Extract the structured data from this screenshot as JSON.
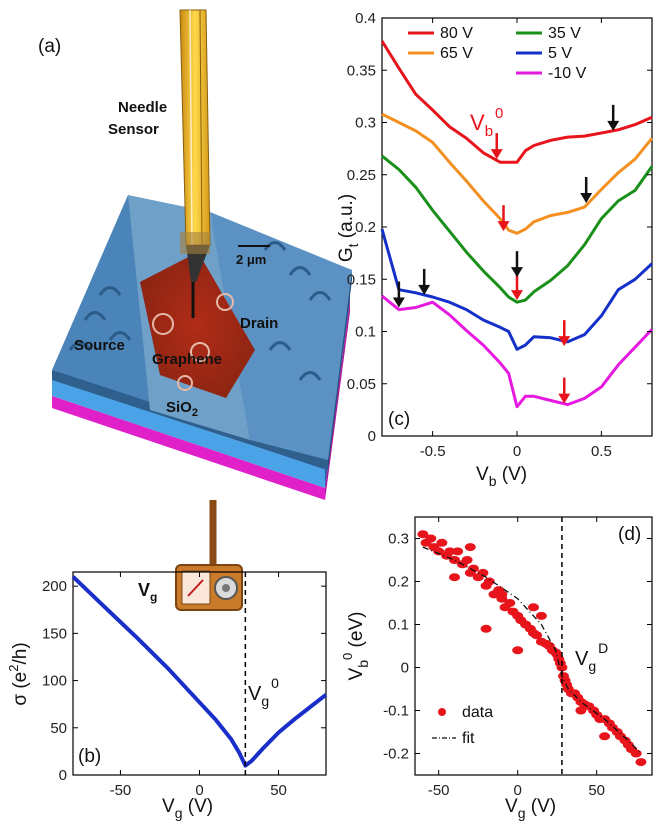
{
  "figure": {
    "panel_a": {
      "label": "(a)",
      "needle_line1": "Needle",
      "needle_line2": "Sensor",
      "scale_bar": "2 μm",
      "drain": "Drain",
      "source": "Source",
      "graphene": "Graphene",
      "sio2": "SiO",
      "sio2_sub": "2",
      "vg": "V",
      "vg_sub": "g"
    },
    "panel_b": {
      "label": "(b)",
      "annotation": "V",
      "annotation_sub": "g",
      "annotation_sup": "0"
    },
    "panel_c": {
      "label": "(c)",
      "annotation": "V",
      "annotation_sub": "b",
      "annotation_sup": "0"
    },
    "panel_d": {
      "label": "(d)",
      "annotation": "V",
      "annotation_sub": "g",
      "annotation_sup": "D"
    }
  },
  "chart_data": [
    {
      "id": "c",
      "type": "line",
      "xlabel": "V",
      "xlabel_sub": "b",
      "xlabel_unit": " (V)",
      "ylabel": "G",
      "ylabel_sub": "t",
      "ylabel_unit": " (a.u.)",
      "xlim": [
        -0.8,
        0.8
      ],
      "ylim": [
        0,
        0.4
      ],
      "xticks": [
        -0.5,
        0,
        0.5
      ],
      "xtick_labels": [
        "-0.5",
        "0",
        "0.5"
      ],
      "yticks": [
        0,
        0.05,
        0.1,
        0.15,
        0.2,
        0.25,
        0.3,
        0.35,
        0.4
      ],
      "ytick_labels": [
        "0",
        "0.05",
        "0.1",
        "0.15",
        "0.2",
        "0.25",
        "0.3",
        "0.35",
        "0.4"
      ],
      "legend_placement": "top",
      "series": [
        {
          "name": "80 V",
          "color": "#e8141c",
          "x": [
            -0.8,
            -0.7,
            -0.6,
            -0.5,
            -0.4,
            -0.3,
            -0.2,
            -0.1,
            -0.05,
            0,
            0.05,
            0.1,
            0.2,
            0.3,
            0.4,
            0.5,
            0.6,
            0.7,
            0.8
          ],
          "y": [
            0.378,
            0.352,
            0.327,
            0.312,
            0.296,
            0.285,
            0.271,
            0.262,
            0.262,
            0.262,
            0.273,
            0.278,
            0.283,
            0.286,
            0.287,
            0.29,
            0.293,
            0.298,
            0.305
          ]
        },
        {
          "name": "65 V",
          "color": "#f39021",
          "x": [
            -0.8,
            -0.7,
            -0.6,
            -0.5,
            -0.4,
            -0.3,
            -0.2,
            -0.1,
            -0.05,
            0,
            0.05,
            0.1,
            0.2,
            0.3,
            0.4,
            0.5,
            0.6,
            0.7,
            0.8
          ],
          "y": [
            0.308,
            0.3,
            0.292,
            0.281,
            0.262,
            0.244,
            0.225,
            0.208,
            0.197,
            0.194,
            0.198,
            0.205,
            0.211,
            0.214,
            0.219,
            0.236,
            0.252,
            0.265,
            0.285
          ]
        },
        {
          "name": "35 V",
          "color": "#1a8f1a",
          "x": [
            -0.8,
            -0.7,
            -0.6,
            -0.5,
            -0.4,
            -0.3,
            -0.2,
            -0.1,
            -0.05,
            0,
            0.05,
            0.1,
            0.2,
            0.3,
            0.4,
            0.5,
            0.6,
            0.7,
            0.8
          ],
          "y": [
            0.268,
            0.255,
            0.238,
            0.216,
            0.196,
            0.176,
            0.158,
            0.142,
            0.133,
            0.128,
            0.13,
            0.138,
            0.149,
            0.163,
            0.183,
            0.208,
            0.225,
            0.235,
            0.258
          ]
        },
        {
          "name": "5 V",
          "color": "#1530c8",
          "x": [
            -0.8,
            -0.7,
            -0.6,
            -0.5,
            -0.4,
            -0.3,
            -0.2,
            -0.1,
            -0.05,
            0,
            0.05,
            0.1,
            0.2,
            0.3,
            0.4,
            0.5,
            0.6,
            0.7,
            0.8
          ],
          "y": [
            0.198,
            0.14,
            0.137,
            0.133,
            0.128,
            0.121,
            0.111,
            0.104,
            0.1,
            0.083,
            0.087,
            0.095,
            0.094,
            0.09,
            0.097,
            0.115,
            0.14,
            0.15,
            0.165
          ]
        },
        {
          "name": "-10 V",
          "color": "#e619e0",
          "x": [
            -0.8,
            -0.7,
            -0.6,
            -0.5,
            -0.4,
            -0.3,
            -0.2,
            -0.1,
            -0.05,
            0,
            0.05,
            0.1,
            0.2,
            0.3,
            0.4,
            0.5,
            0.6,
            0.7,
            0.8
          ],
          "y": [
            0.134,
            0.121,
            0.123,
            0.128,
            0.116,
            0.101,
            0.087,
            0.07,
            0.06,
            0.028,
            0.038,
            0.038,
            0.034,
            0.03,
            0.036,
            0.047,
            0.068,
            0.085,
            0.102
          ]
        }
      ],
      "arrows": [
        {
          "x": -0.12,
          "y": 0.265,
          "color": "#e8141c"
        },
        {
          "x": 0.57,
          "y": 0.292,
          "color": "#111111"
        },
        {
          "x": -0.08,
          "y": 0.196,
          "color": "#e8141c"
        },
        {
          "x": 0.41,
          "y": 0.223,
          "color": "#111111"
        },
        {
          "x": 0.0,
          "y": 0.13,
          "color": "#e8141c"
        },
        {
          "x": 0.0,
          "y": 0.152,
          "color": "#111111"
        },
        {
          "x": 0.28,
          "y": 0.086,
          "color": "#e8141c"
        },
        {
          "x": -0.55,
          "y": 0.135,
          "color": "#111111"
        },
        {
          "x": -0.7,
          "y": 0.123,
          "color": "#111111"
        },
        {
          "x": 0.28,
          "y": 0.031,
          "color": "#e8141c"
        }
      ]
    },
    {
      "id": "b",
      "type": "line",
      "xlabel": "V",
      "xlabel_sub": "g",
      "xlabel_unit": " (V)",
      "ylabel": "σ (e",
      "ylabel_sup": "2",
      "ylabel_unit": "/h)",
      "xlim": [
        -80,
        80
      ],
      "ylim": [
        0,
        215
      ],
      "xticks": [
        -50,
        0,
        50
      ],
      "xtick_labels": [
        "-50",
        "0",
        "50"
      ],
      "yticks": [
        0,
        50,
        100,
        150,
        200
      ],
      "ytick_labels": [
        "0",
        "50",
        "100",
        "150",
        "200"
      ],
      "vline": 29,
      "series": [
        {
          "name": "",
          "color": "#1a2fc9",
          "x": [
            -80,
            -60,
            -40,
            -20,
            0,
            10,
            20,
            25,
            29,
            33,
            40,
            50,
            60,
            70,
            80
          ],
          "y": [
            210,
            178,
            146,
            113,
            77,
            59,
            38,
            24,
            10,
            15,
            28,
            45,
            59,
            72,
            85
          ]
        }
      ]
    },
    {
      "id": "d",
      "type": "scatter",
      "xlabel": "V",
      "xlabel_sub": "g",
      "xlabel_unit": " (V)",
      "ylabel": "V",
      "ylabel_sub": "b",
      "ylabel_sup": "0",
      "ylabel_unit": " (eV)",
      "xlim": [
        -65,
        85
      ],
      "ylim": [
        -0.25,
        0.35
      ],
      "xticks": [
        -50,
        0,
        50
      ],
      "xtick_labels": [
        "-50",
        "0",
        "50"
      ],
      "yticks": [
        -0.2,
        -0.1,
        0,
        0.1,
        0.2,
        0.3
      ],
      "ytick_labels": [
        "-0.2",
        "-0.1",
        "0",
        "0.1",
        "0.2",
        "0.3"
      ],
      "vline": 28,
      "legend": [
        {
          "name": "data",
          "marker": "dot",
          "color": "#e8141c"
        },
        {
          "name": "fit",
          "marker": "dash-dot",
          "color": "#111111"
        }
      ],
      "data_series": {
        "name": "data",
        "color": "#e8141c",
        "x": [
          -60,
          -58,
          -55,
          -53,
          -50,
          -48,
          -45,
          -43,
          -40,
          -38,
          -35,
          -32,
          -30,
          -28,
          -25,
          -22,
          -20,
          -18,
          -15,
          -12,
          -10,
          -8,
          -5,
          -3,
          0,
          2,
          5,
          8,
          10,
          12,
          15,
          18,
          20,
          22,
          24,
          25,
          26,
          27,
          28,
          29,
          30,
          31,
          32,
          34,
          36,
          38,
          40,
          42,
          45,
          48,
          50,
          52,
          55,
          58,
          60,
          63,
          65,
          68,
          70,
          72,
          75,
          78,
          -40,
          -20,
          0,
          10,
          -30,
          -10,
          15,
          40,
          55
        ],
        "y": [
          0.31,
          0.29,
          0.3,
          0.28,
          0.27,
          0.29,
          0.26,
          0.27,
          0.25,
          0.27,
          0.24,
          0.25,
          0.22,
          0.23,
          0.21,
          0.22,
          0.19,
          0.2,
          0.17,
          0.18,
          0.16,
          0.14,
          0.15,
          0.13,
          0.12,
          0.11,
          0.1,
          0.09,
          0.08,
          0.075,
          0.06,
          0.055,
          0.05,
          0.04,
          0.035,
          0.03,
          0.02,
          0.01,
          0.0,
          -0.02,
          -0.03,
          -0.04,
          -0.05,
          -0.06,
          -0.06,
          -0.07,
          -0.08,
          -0.085,
          -0.09,
          -0.1,
          -0.11,
          -0.12,
          -0.12,
          -0.13,
          -0.14,
          -0.15,
          -0.16,
          -0.17,
          -0.18,
          -0.19,
          -0.2,
          -0.22,
          0.21,
          0.09,
          0.04,
          0.14,
          0.28,
          0.17,
          0.12,
          -0.1,
          -0.16
        ]
      },
      "fit_series": {
        "name": "fit",
        "color": "#111111",
        "x": [
          -60,
          -40,
          -20,
          0,
          15,
          24,
          28,
          32,
          40,
          55,
          70,
          78
        ],
        "y": [
          0.28,
          0.25,
          0.21,
          0.16,
          0.1,
          0.04,
          -0.02,
          -0.05,
          -0.08,
          -0.12,
          -0.17,
          -0.2
        ]
      }
    }
  ]
}
